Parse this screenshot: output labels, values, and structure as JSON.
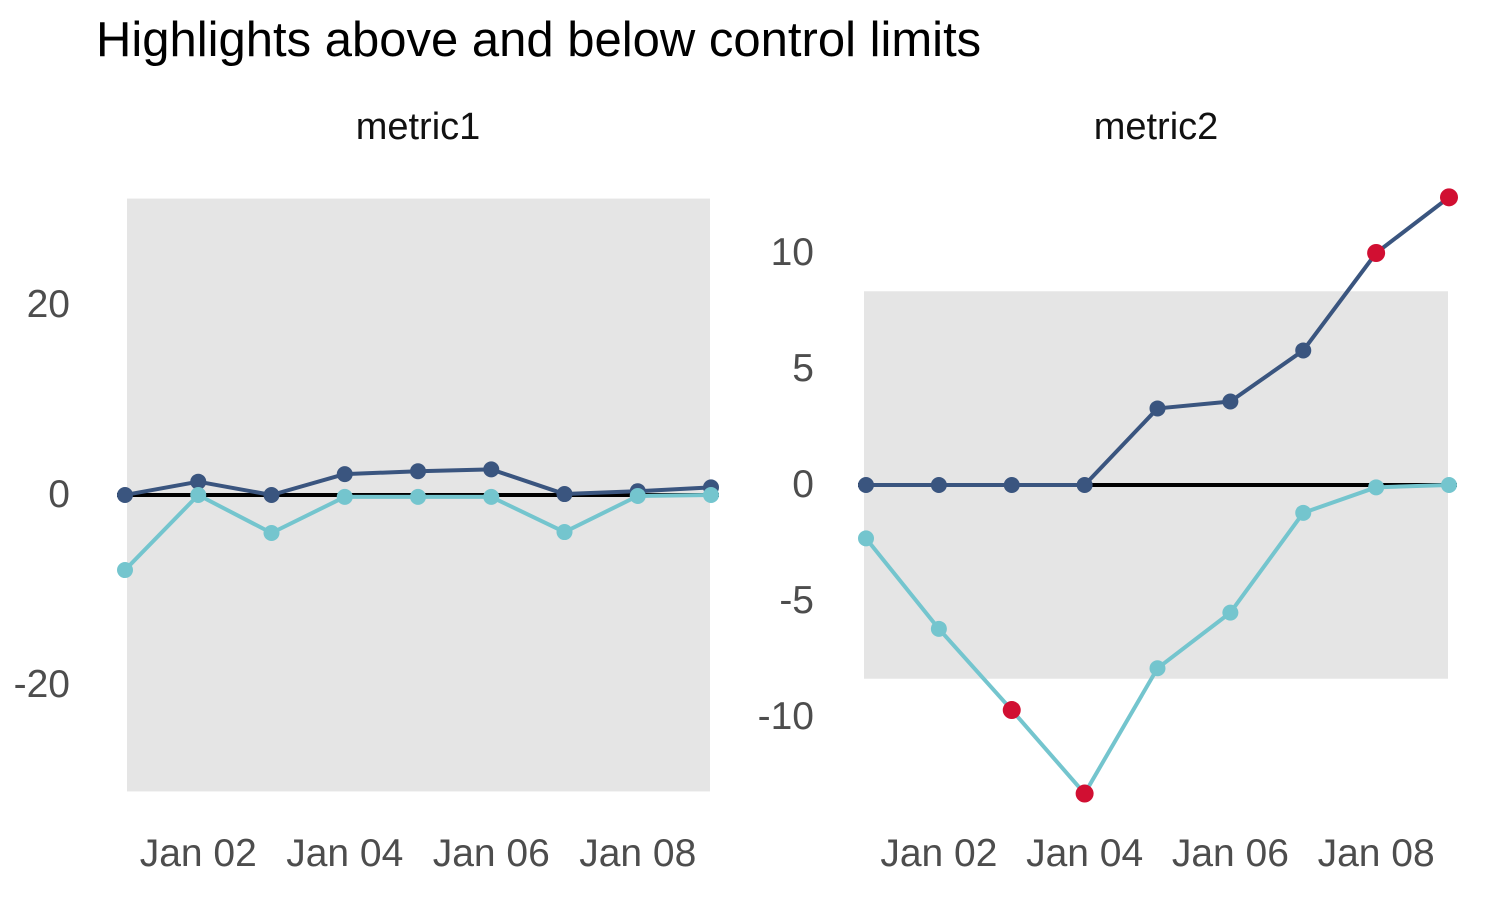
{
  "title": "Highlights above and below control limits",
  "colors": {
    "above_series": "#3a557f",
    "below_series": "#74c5ce",
    "highlight": "#d10f32",
    "band": "#e5e5e5",
    "center_line": "#000000",
    "axis_text": "#4d4d4d",
    "title_text": "#000000"
  },
  "chart_data": [
    {
      "type": "line",
      "facet": "metric1",
      "x": [
        "Jan 01",
        "Jan 02",
        "Jan 03",
        "Jan 04",
        "Jan 05",
        "Jan 06",
        "Jan 07",
        "Jan 08",
        "Jan 09"
      ],
      "x_tick_labels": [
        "Jan 02",
        "Jan 04",
        "Jan 06",
        "Jan 08"
      ],
      "y_ticks": [
        20,
        0,
        -20
      ],
      "ylim": [
        -33.5,
        33.5
      ],
      "grid": false,
      "center_line_value": 0,
      "control_limits": {
        "upper": 31.2,
        "lower": -31.2
      },
      "series": [
        {
          "name": "above",
          "values": [
            0,
            1.4,
            0,
            2.2,
            2.5,
            2.7,
            0.1,
            0.4,
            0.8
          ]
        },
        {
          "name": "below",
          "values": [
            -7.9,
            0,
            -4,
            -0.2,
            -0.2,
            -0.2,
            -3.9,
            -0.1,
            0
          ]
        }
      ],
      "highlighted_points": []
    },
    {
      "type": "line",
      "facet": "metric2",
      "x": [
        "Jan 01",
        "Jan 02",
        "Jan 03",
        "Jan 04",
        "Jan 05",
        "Jan 06",
        "Jan 07",
        "Jan 08",
        "Jan 09"
      ],
      "x_tick_labels": [
        "Jan 02",
        "Jan 04",
        "Jan 06",
        "Jan 08"
      ],
      "y_ticks": [
        10,
        5,
        0,
        -5,
        -10
      ],
      "ylim": [
        -14.7,
        13.6
      ],
      "grid": false,
      "center_line_value": 0,
      "control_limits": {
        "upper": 8.35,
        "lower": -8.35
      },
      "series": [
        {
          "name": "above",
          "values": [
            0,
            0,
            0,
            0,
            3.3,
            3.6,
            5.8,
            10,
            12.4
          ]
        },
        {
          "name": "below",
          "values": [
            -2.3,
            -6.2,
            -9.7,
            -13.3,
            -7.9,
            -5.5,
            -1.2,
            -0.1,
            0
          ]
        }
      ],
      "highlighted_points": [
        {
          "series": "below",
          "index": 2
        },
        {
          "series": "below",
          "index": 3
        },
        {
          "series": "above",
          "index": 7
        },
        {
          "series": "above",
          "index": 8
        }
      ]
    }
  ]
}
